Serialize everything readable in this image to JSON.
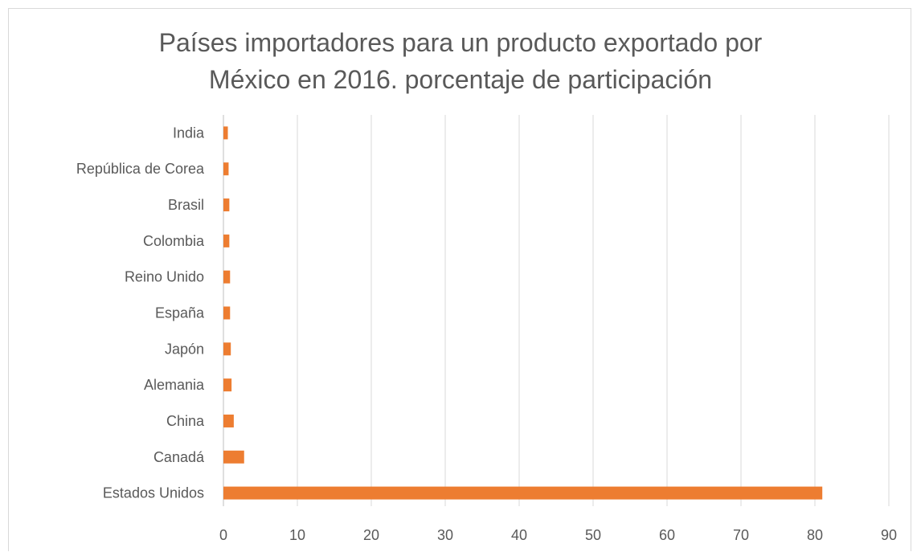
{
  "chart_data": {
    "type": "bar",
    "orientation": "horizontal",
    "title_lines": [
      "Países importadores para un producto exportado por",
      "México en 2016. porcentaje de participación"
    ],
    "categories": [
      "India",
      "República de Corea",
      "Brasil",
      "Colombia",
      "Reino Unido",
      "España",
      "Japón",
      "Alemania",
      "China",
      "Canadá",
      "Estados Unidos"
    ],
    "values": [
      0.6,
      0.7,
      0.8,
      0.8,
      0.9,
      0.9,
      1.0,
      1.1,
      1.4,
      2.8,
      81
    ],
    "xlim": [
      0,
      90
    ],
    "xticks": [
      "0",
      "10",
      "20",
      "30",
      "40",
      "50",
      "60",
      "70",
      "80",
      "90"
    ],
    "xlabel": "",
    "ylabel": "",
    "grid": "vertical",
    "legend": "none",
    "colors": {
      "bar": "#ED7D31",
      "grid": "#d9d9d9",
      "text": "#595959"
    }
  }
}
